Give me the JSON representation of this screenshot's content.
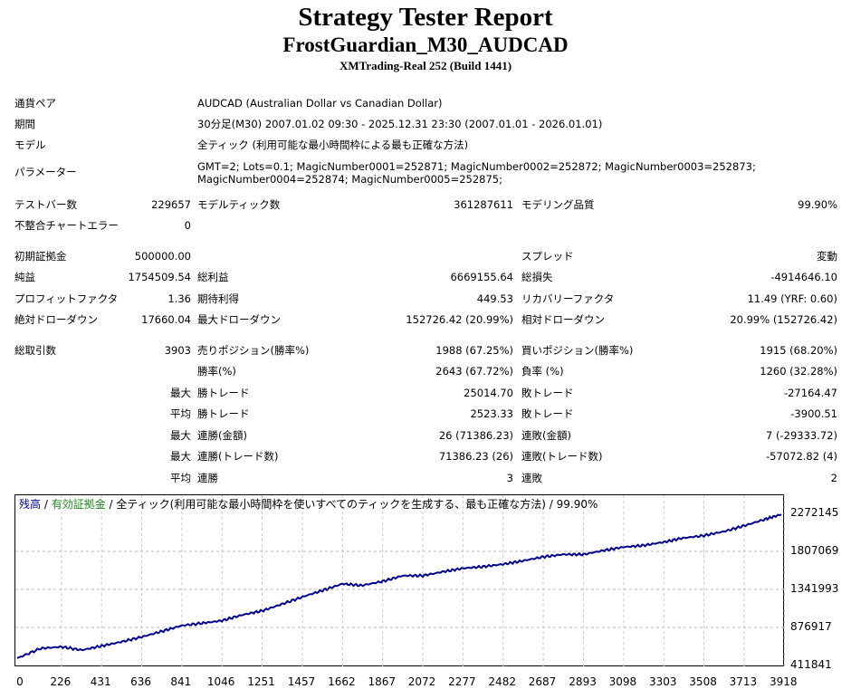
{
  "header": {
    "title": "Strategy Tester Report",
    "subtitle": "FrostGuardian_M30_AUDCAD",
    "server": "XMTrading-Real 252 (Build 1441)"
  },
  "info": {
    "pair_label": "通貨ペア",
    "pair_value": "AUDCAD (Australian Dollar vs Canadian Dollar)",
    "period_label": "期間",
    "period_value": "30分足(M30) 2007.01.02 09:30 - 2025.12.31 23:30 (2007.01.01 - 2026.01.01)",
    "model_label": "モデル",
    "model_value": "全ティック (利用可能な最小時間枠による最も正確な方法)",
    "params_label": "パラメーター",
    "params_value": "GMT=2; Lots=0.1; MagicNumber0001=252871; MagicNumber0002=252872; MagicNumber0003=252873; MagicNumber0004=252874; MagicNumber0005=252875;"
  },
  "rows": [
    {
      "y": 226,
      "cells": [
        {
          "t": "テストバー数",
          "x": 16,
          "a": "l"
        },
        {
          "t": "229657",
          "x": 211,
          "a": "r"
        },
        {
          "t": "モデルティック数",
          "x": 218,
          "a": "l"
        },
        {
          "t": "361287611",
          "x": 567,
          "a": "r"
        },
        {
          "t": "モデリング品質",
          "x": 576,
          "a": "l"
        },
        {
          "t": "99.90%",
          "x": 925,
          "a": "r"
        }
      ]
    },
    {
      "y": 249,
      "cells": [
        {
          "t": "不整合チャートエラー",
          "x": 16,
          "a": "l"
        },
        {
          "t": "0",
          "x": 211,
          "a": "r"
        }
      ]
    },
    {
      "y": 283,
      "cells": [
        {
          "t": "初期証拠金",
          "x": 16,
          "a": "l"
        },
        {
          "t": "500000.00",
          "x": 211,
          "a": "r"
        },
        {
          "t": "スプレッド",
          "x": 576,
          "a": "l"
        },
        {
          "t": "変動",
          "x": 925,
          "a": "r"
        }
      ]
    },
    {
      "y": 306,
      "cells": [
        {
          "t": "純益",
          "x": 16,
          "a": "l"
        },
        {
          "t": "1754509.54",
          "x": 211,
          "a": "r"
        },
        {
          "t": "総利益",
          "x": 218,
          "a": "l"
        },
        {
          "t": "6669155.64",
          "x": 567,
          "a": "r"
        },
        {
          "t": "総損失",
          "x": 576,
          "a": "l"
        },
        {
          "t": "-4914646.10",
          "x": 925,
          "a": "r"
        }
      ]
    },
    {
      "y": 330,
      "cells": [
        {
          "t": "プロフィットファクタ",
          "x": 16,
          "a": "l"
        },
        {
          "t": "1.36",
          "x": 211,
          "a": "r"
        },
        {
          "t": "期待利得",
          "x": 218,
          "a": "l"
        },
        {
          "t": "449.53",
          "x": 567,
          "a": "r"
        },
        {
          "t": "リカバリーファクタ",
          "x": 576,
          "a": "l"
        },
        {
          "t": "11.49 (YRF: 0.60)",
          "x": 925,
          "a": "r"
        }
      ]
    },
    {
      "y": 353,
      "cells": [
        {
          "t": "絶対ドローダウン",
          "x": 16,
          "a": "l"
        },
        {
          "t": "17660.04",
          "x": 211,
          "a": "r"
        },
        {
          "t": "最大ドローダウン",
          "x": 218,
          "a": "l"
        },
        {
          "t": "152726.42 (20.99%)",
          "x": 567,
          "a": "r"
        },
        {
          "t": "相対ドローダウン",
          "x": 576,
          "a": "l"
        },
        {
          "t": "20.99% (152726.42)",
          "x": 925,
          "a": "r"
        }
      ]
    },
    {
      "y": 387,
      "cells": [
        {
          "t": "総取引数",
          "x": 16,
          "a": "l"
        },
        {
          "t": "3903",
          "x": 211,
          "a": "r"
        },
        {
          "t": "売りポジション(勝率%)",
          "x": 218,
          "a": "l"
        },
        {
          "t": "1988 (67.25%)",
          "x": 567,
          "a": "r"
        },
        {
          "t": "買いポジション(勝率%)",
          "x": 576,
          "a": "l"
        },
        {
          "t": "1915 (68.20%)",
          "x": 925,
          "a": "r"
        }
      ]
    },
    {
      "y": 410,
      "cells": [
        {
          "t": "勝率(%)",
          "x": 218,
          "a": "l"
        },
        {
          "t": "2643 (67.72%)",
          "x": 567,
          "a": "r"
        },
        {
          "t": "負率 (%)",
          "x": 576,
          "a": "l"
        },
        {
          "t": "1260 (32.28%)",
          "x": 925,
          "a": "r"
        }
      ]
    },
    {
      "y": 434,
      "cells": [
        {
          "t": "最大",
          "x": 211,
          "a": "r"
        },
        {
          "t": "勝トレード",
          "x": 218,
          "a": "l"
        },
        {
          "t": "25014.70",
          "x": 567,
          "a": "r"
        },
        {
          "t": "敗トレード",
          "x": 576,
          "a": "l"
        },
        {
          "t": "-27164.47",
          "x": 925,
          "a": "r"
        }
      ]
    },
    {
      "y": 457,
      "cells": [
        {
          "t": "平均",
          "x": 211,
          "a": "r"
        },
        {
          "t": "勝トレード",
          "x": 218,
          "a": "l"
        },
        {
          "t": "2523.33",
          "x": 567,
          "a": "r"
        },
        {
          "t": "敗トレード",
          "x": 576,
          "a": "l"
        },
        {
          "t": "-3900.51",
          "x": 925,
          "a": "r"
        }
      ]
    },
    {
      "y": 481,
      "cells": [
        {
          "t": "最大",
          "x": 211,
          "a": "r"
        },
        {
          "t": "連勝(金額)",
          "x": 218,
          "a": "l"
        },
        {
          "t": "26 (71386.23)",
          "x": 567,
          "a": "r"
        },
        {
          "t": "連敗(金額)",
          "x": 576,
          "a": "l"
        },
        {
          "t": "7 (-29333.72)",
          "x": 925,
          "a": "r"
        }
      ]
    },
    {
      "y": 504,
      "cells": [
        {
          "t": "最大",
          "x": 211,
          "a": "r"
        },
        {
          "t": "連勝(トレード数)",
          "x": 218,
          "a": "l"
        },
        {
          "t": "71386.23 (26)",
          "x": 567,
          "a": "r"
        },
        {
          "t": "連敗(トレード数)",
          "x": 576,
          "a": "l"
        },
        {
          "t": "-57072.82 (4)",
          "x": 925,
          "a": "r"
        }
      ]
    },
    {
      "y": 528,
      "cells": [
        {
          "t": "平均",
          "x": 211,
          "a": "r"
        },
        {
          "t": "連勝",
          "x": 218,
          "a": "l"
        },
        {
          "t": "3",
          "x": 567,
          "a": "r"
        },
        {
          "t": "連敗",
          "x": 576,
          "a": "l"
        },
        {
          "t": "2",
          "x": 925,
          "a": "r"
        }
      ]
    }
  ],
  "legend": {
    "balance": "残高",
    "sep": " / ",
    "equity": "有効証拠金",
    "rest": " / 全ティック(利用可能な最小時間枠を使いすべてのティックを生成する、最も正確な方法) / 99.90%",
    "balance_color": "#00008b",
    "equity_color": "#1e8a1e"
  },
  "chart_data": {
    "type": "line",
    "x_ticks": [
      "0",
      "226",
      "431",
      "636",
      "841",
      "1046",
      "1251",
      "1457",
      "1662",
      "1867",
      "2072",
      "2277",
      "2482",
      "2687",
      "2893",
      "3098",
      "3303",
      "3508",
      "3713",
      "3918"
    ],
    "y_ticks": [
      "2272145",
      "1807069",
      "1341993",
      "876917",
      "411841"
    ],
    "ylim": [
      411841,
      2272145
    ],
    "xlim": [
      0,
      3903
    ],
    "series": [
      {
        "color": "#00008b",
        "x": [
          0,
          120,
          226,
          330,
          431,
          530,
          636,
          740,
          841,
          950,
          1046,
          1150,
          1251,
          1350,
          1457,
          1560,
          1662,
          1760,
          1867,
          1970,
          2072,
          2180,
          2277,
          2380,
          2482,
          2580,
          2687,
          2790,
          2893,
          3000,
          3098,
          3200,
          3303,
          3400,
          3508,
          3610,
          3713,
          3820,
          3903
        ],
        "values": [
          500000,
          620000,
          640000,
          600000,
          650000,
          700000,
          760000,
          830000,
          900000,
          930000,
          960000,
          1030000,
          1080000,
          1160000,
          1250000,
          1330000,
          1410000,
          1390000,
          1440000,
          1510000,
          1510000,
          1560000,
          1600000,
          1620000,
          1650000,
          1690000,
          1740000,
          1770000,
          1770000,
          1820000,
          1860000,
          1880000,
          1920000,
          1970000,
          2000000,
          2050000,
          2120000,
          2200000,
          2260000
        ]
      }
    ]
  }
}
